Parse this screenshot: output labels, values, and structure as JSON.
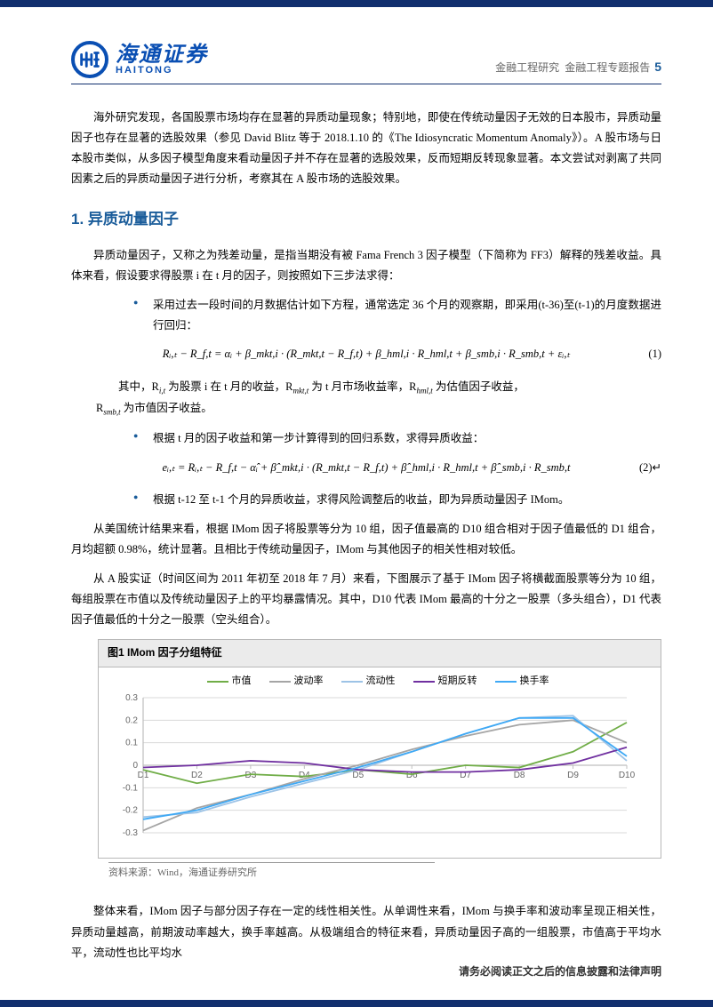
{
  "header": {
    "logo_cn": "海通证券",
    "logo_en": "HAITONG",
    "meta_a": "金融工程研究",
    "meta_b": "金融工程专题报告",
    "page": "5"
  },
  "intro": "海外研究发现，各国股票市场均存在显著的异质动量现象；特别地，即使在传统动量因子无效的日本股市，异质动量因子也存在显著的选股效果（参见 David Blitz 等于 2018.1.10 的《The Idiosyncratic Momentum Anomaly》）。A 股市场与日本股市类似，从多因子模型角度来看动量因子并不存在显著的选股效果，反而短期反转现象显著。本文尝试对剥离了共同因素之后的异质动量因子进行分析，考察其在 A 股市场的选股效果。",
  "h2": "1. 异质动量因子",
  "p1": "异质动量因子，又称之为残差动量，是指当期没有被 Fama French 3 因子模型（下简称为 FF3）解释的残差收益。具体来看，假设要求得股票 i 在 t 月的因子，则按照如下三步法求得：",
  "b1": "采用过去一段时间的月数据估计如下方程，通常选定 36 个月的观察期，即采用(t-36)至(t-1)的月度数据进行回归：",
  "eq1": "Rᵢ,ₜ − R_f,t = αᵢ + β_mkt,i · (R_mkt,t − R_f,t) + β_hml,i · R_hml,t + β_smb,i · R_smb,t + εᵢ,ₜ",
  "eq1n": "(1)",
  "p_where_a": "其中，R",
  "p_where_b": "为股票 i 在 t 月的收益，R",
  "p_where_c": "为 t 月市场收益率，R",
  "p_where_d": "为估值因子收益，",
  "p_where_e": "为市值因子收益。",
  "p_where_r": "R",
  "b2": "根据 t 月的因子收益和第一步计算得到的回归系数，求得异质收益：",
  "eq2": "eᵢ,ₜ = Rᵢ,ₜ − R_f,t − α̂ᵢ + β̂_mkt,i · (R_mkt,t − R_f,t) + β̂_hml,i · R_hml,t + β̂_smb,i · R_smb,t",
  "eq2n": "(2)↵",
  "b3": "根据 t-12 至 t-1 个月的异质收益，求得风险调整后的收益，即为异质动量因子 IMom。",
  "p2": "从美国统计结果来看，根据 IMom 因子将股票等分为 10 组，因子值最高的 D10 组合相对于因子值最低的 D1 组合，月均超额 0.98%，统计显著。且相比于传统动量因子，IMom 与其他因子的相关性相对较低。",
  "p3": "从 A 股实证（时间区间为 2011 年初至 2018 年 7 月）来看，下图展示了基于 IMom 因子将横截面股票等分为 10 组，每组股票在市值以及传统动量因子上的平均暴露情况。其中，D10 代表 IMom 最高的十分之一股票（多头组合），D1 代表因子值最低的十分之一股票（空头组合）。",
  "fig_title": "图1  IMom 因子分组特征",
  "chart": {
    "type": "line",
    "categories": [
      "D1",
      "D2",
      "D3",
      "D4",
      "D5",
      "D6",
      "D7",
      "D8",
      "D9",
      "D10"
    ],
    "series": [
      {
        "name": "市值",
        "color": "#70ad47",
        "values": [
          -0.02,
          -0.08,
          -0.04,
          -0.05,
          -0.02,
          -0.04,
          0.0,
          -0.01,
          0.06,
          0.19
        ]
      },
      {
        "name": "波动率",
        "color": "#a5a5a5",
        "values": [
          -0.29,
          -0.19,
          -0.13,
          -0.06,
          0.0,
          0.07,
          0.13,
          0.18,
          0.2,
          0.1
        ]
      },
      {
        "name": "流动性",
        "color": "#9dc3e6",
        "values": [
          -0.23,
          -0.21,
          -0.14,
          -0.08,
          -0.02,
          0.06,
          0.14,
          0.21,
          0.22,
          0.02
        ]
      },
      {
        "name": "短期反转",
        "color": "#7030a0",
        "values": [
          -0.01,
          0.0,
          0.02,
          0.01,
          -0.02,
          -0.03,
          -0.03,
          -0.02,
          0.01,
          0.08
        ]
      },
      {
        "name": "换手率",
        "color": "#3fa9f5",
        "values": [
          -0.24,
          -0.2,
          -0.13,
          -0.07,
          -0.01,
          0.06,
          0.14,
          0.21,
          0.21,
          0.04
        ]
      }
    ],
    "ylim": [
      -0.3,
      0.3
    ],
    "ytick": 0.1,
    "background": "#ffffff",
    "grid_color": "#d9d9d9",
    "axis_color": "#bfbfbf",
    "label_fontsize": 10
  },
  "fig_source": "资料来源：Wind，海通证券研究所",
  "p4": "整体来看，IMom 因子与部分因子存在一定的线性相关性。从单调性来看，IMom 与换手率和波动率呈现正相关性，异质动量越高，前期波动率越大，换手率越高。从极端组合的特征来看，异质动量因子高的一组股票，市值高于平均水平，流动性也比平均水",
  "footer": "请务必阅读正文之后的信息披露和法律声明"
}
